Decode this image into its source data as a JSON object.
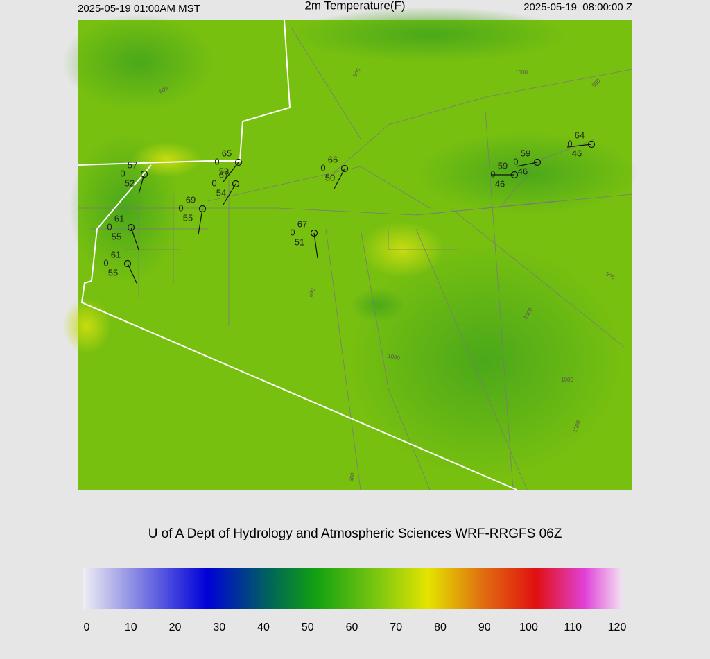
{
  "header": {
    "local_time": "2025-05-19 01:00AM MST",
    "title": "2m Temperature(F)",
    "utc_time": "2025-05-19_08:00:00 Z"
  },
  "stations": [
    {
      "temperature": 57,
      "cloud": 0,
      "dewpoint": 52
    },
    {
      "temperature": 65,
      "cloud": 0,
      "dewpoint": 53
    },
    {
      "temperature": 67,
      "cloud": 0,
      "dewpoint": 54
    },
    {
      "temperature": 69,
      "cloud": 0,
      "dewpoint": 55
    },
    {
      "temperature": 61,
      "cloud": 0,
      "dewpoint": 55
    },
    {
      "temperature": 61,
      "cloud": 0,
      "dewpoint": 55
    },
    {
      "temperature": 67,
      "cloud": 0,
      "dewpoint": 51
    },
    {
      "temperature": 66,
      "cloud": 0,
      "dewpoint": 50
    },
    {
      "temperature": 59,
      "cloud": 0,
      "dewpoint": 46
    },
    {
      "temperature": 59,
      "cloud": 0,
      "dewpoint": 46
    },
    {
      "temperature": 64,
      "cloud": 0,
      "dewpoint": 46
    }
  ],
  "contour_labels": [
    500,
    500,
    1000,
    500,
    500,
    1000,
    1000,
    1000,
    500,
    1000,
    500
  ],
  "footer": "U of A Dept of Hydrology and Atmospheric Sciences WRF-RRGFS 06Z",
  "colorbar": {
    "ticks": [
      0,
      10,
      20,
      30,
      40,
      50,
      60,
      70,
      80,
      90,
      100,
      110,
      120
    ]
  }
}
